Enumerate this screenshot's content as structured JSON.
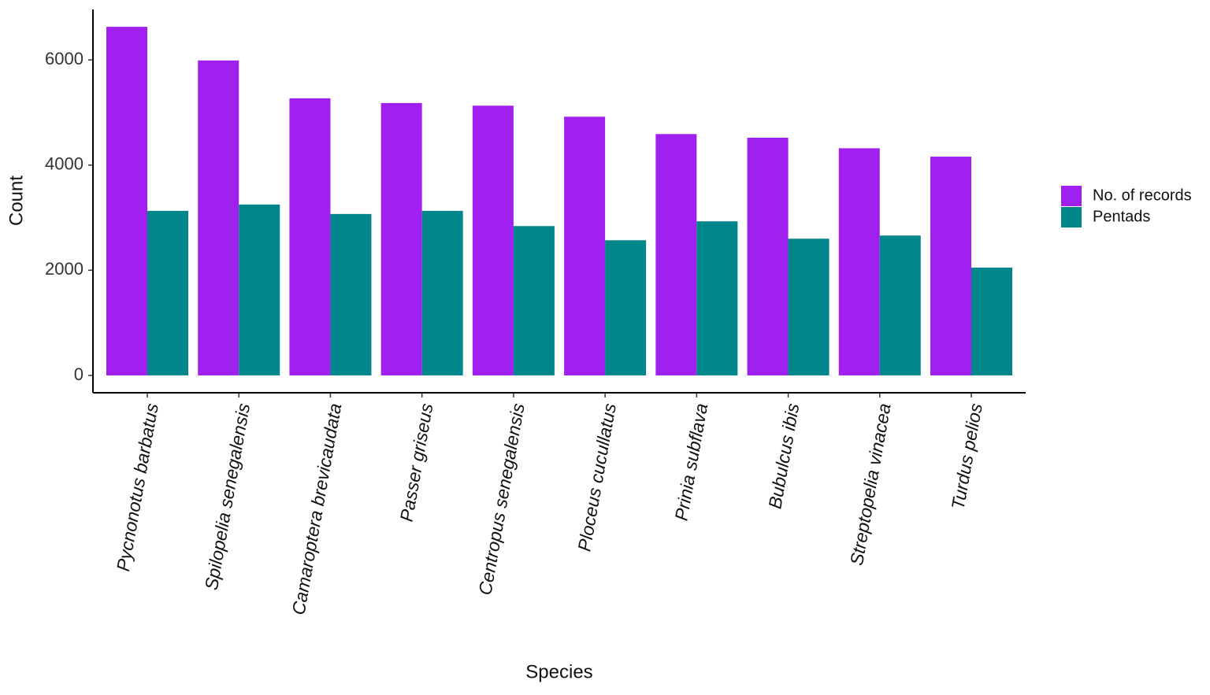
{
  "chart_data": {
    "type": "bar",
    "x_label": "Species",
    "y_label": "Count",
    "categories": [
      "Pycnonotus barbatus",
      "Spilopelia senegalensis",
      "Camaroptera brevicaudata",
      "Passer griseus",
      "Centropus senegalensis",
      "Ploceus cucullatus",
      "Prinia subflava",
      "Bubulcus ibis",
      "Streptopelia vinacea",
      "Turdus pelios"
    ],
    "series": [
      {
        "name": "No. of records",
        "color": "#a020f0",
        "values": [
          6630,
          5990,
          5270,
          5180,
          5130,
          4920,
          4590,
          4520,
          4320,
          4160
        ]
      },
      {
        "name": "Pentads",
        "color": "#00868b",
        "values": [
          3130,
          3250,
          3070,
          3130,
          2840,
          2570,
          2930,
          2600,
          2660,
          2050
        ]
      }
    ],
    "ylim": [
      -330,
      6960
    ],
    "yticks": [
      0,
      2000,
      4000,
      6000
    ],
    "grid": false,
    "legend": "right"
  }
}
